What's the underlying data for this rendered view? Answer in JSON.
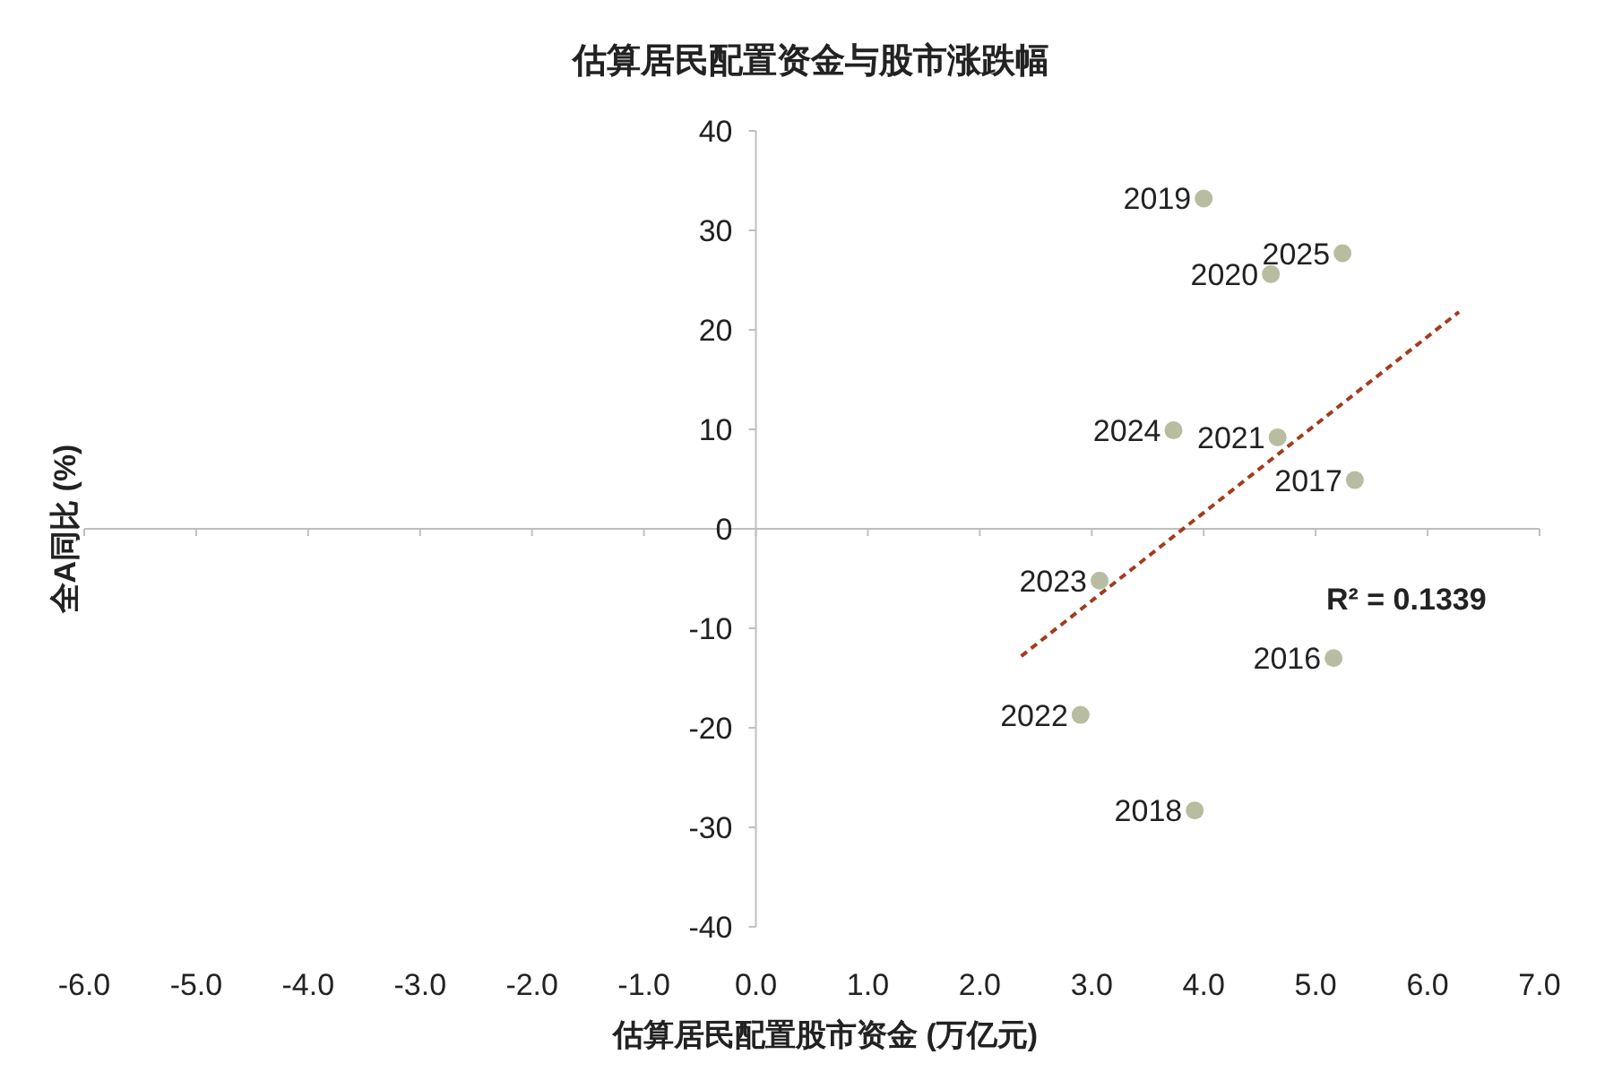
{
  "chart_data": {
    "type": "scatter",
    "title": "估算居民配置资金与股市涨跌幅",
    "xlabel": "估算居民配置股市资金 (万亿元)",
    "ylabel": "全A同比 (%)",
    "series": [
      {
        "marker": "circle",
        "color": "#b8bca0",
        "x": [
          4.0,
          5.24,
          4.6,
          3.73,
          4.66,
          5.35,
          3.07,
          5.16,
          2.9,
          3.92
        ],
        "values": [
          33.2,
          27.7,
          25.6,
          9.9,
          9.2,
          4.9,
          -5.2,
          -13.0,
          -18.7,
          -28.3
        ]
      },
      {
        "type": "line",
        "marker": "none",
        "color": "#a33b1e",
        "line_style": "dashed",
        "x": [
          2.37,
          6.28
        ],
        "values": [
          -12.8,
          21.8
        ]
      }
    ],
    "annotations": [
      {
        "text": "2019",
        "x": 4.0,
        "y": 33.2
      },
      {
        "text": "2025",
        "x": 5.24,
        "y": 27.7
      },
      {
        "text": "2020",
        "x": 4.6,
        "y": 25.6
      },
      {
        "text": "2024",
        "x": 3.73,
        "y": 9.9
      },
      {
        "text": "2021",
        "x": 4.66,
        "y": 9.2
      },
      {
        "text": "2017",
        "x": 5.35,
        "y": 4.9
      },
      {
        "text": "2023",
        "x": 3.07,
        "y": -5.2
      },
      {
        "text": "2016",
        "x": 5.16,
        "y": -13.0
      },
      {
        "text": "2022",
        "x": 2.9,
        "y": -18.7
      },
      {
        "text": "2018",
        "x": 3.92,
        "y": -28.3
      },
      "R² = 0.1339"
    ],
    "xlim": [
      -6,
      7
    ],
    "ylim": [
      -40,
      40
    ],
    "xticks": [
      {
        "value": -6,
        "label": "-6.0"
      },
      {
        "value": -5,
        "label": "-5.0"
      },
      {
        "value": -4,
        "label": "-4.0"
      },
      {
        "value": -3,
        "label": "-3.0"
      },
      {
        "value": -2,
        "label": "-2.0"
      },
      {
        "value": -1,
        "label": "-1.0"
      },
      {
        "value": 0,
        "label": "0.0"
      },
      {
        "value": 1,
        "label": "1.0"
      },
      {
        "value": 2,
        "label": "2.0"
      },
      {
        "value": 3,
        "label": "3.0"
      },
      {
        "value": 4,
        "label": "4.0"
      },
      {
        "value": 5,
        "label": "5.0"
      },
      {
        "value": 6,
        "label": "6.0"
      },
      {
        "value": 7,
        "label": "7.0"
      }
    ],
    "yticks": [
      -40,
      -30,
      -20,
      -10,
      0,
      10,
      20,
      30,
      40
    ]
  }
}
